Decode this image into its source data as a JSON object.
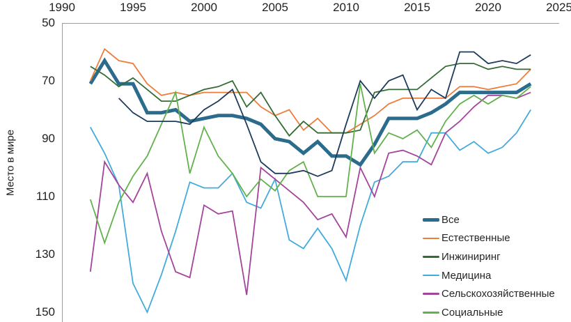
{
  "chart_data": {
    "type": "line",
    "title": "",
    "ylabel": "Место в мире",
    "x_axis": {
      "position": "top",
      "range": [
        1990,
        2025
      ],
      "ticks": [
        1990,
        1995,
        2000,
        2005,
        2010,
        2015,
        2020,
        2025
      ]
    },
    "y_axis": {
      "inverted": true,
      "label": "Место в мире",
      "range": [
        50,
        153
      ],
      "ticks": [
        50,
        70,
        90,
        110,
        130,
        150
      ]
    },
    "grid": false,
    "years": [
      1992,
      1993,
      1994,
      1995,
      1996,
      1997,
      1998,
      1999,
      2000,
      2001,
      2002,
      2003,
      2004,
      2005,
      2006,
      2007,
      2008,
      2009,
      2010,
      2011,
      2012,
      2013,
      2014,
      2015,
      2016,
      2017,
      2018,
      2019,
      2020,
      2021,
      2022,
      2023
    ],
    "series": [
      {
        "key": "vse",
        "name": "Все",
        "color": "#2b6c8c",
        "width": 5,
        "in_legend": true,
        "values": [
          71,
          63,
          71,
          71,
          81,
          81,
          80,
          84,
          83,
          82,
          82,
          83,
          85,
          90,
          91,
          95,
          91,
          96,
          96,
          99,
          92,
          83,
          83,
          83,
          81,
          78,
          74,
          74,
          74,
          74,
          74,
          71
        ]
      },
      {
        "key": "estestvennye",
        "name": "Естественные",
        "color": "#ed7d3b",
        "width": 1.8,
        "in_legend": true,
        "values": [
          70,
          59,
          63,
          64,
          71,
          75,
          74,
          75,
          74,
          74,
          74,
          74,
          79,
          82,
          80,
          87,
          83,
          88,
          88,
          85,
          82,
          78,
          76,
          76,
          76,
          76,
          72,
          72,
          73,
          72,
          71,
          66
        ]
      },
      {
        "key": "inzhiniring",
        "name": "Инжиниринг",
        "color": "#346b34",
        "width": 1.8,
        "in_legend": true,
        "values": [
          65,
          68,
          72,
          69,
          73,
          77,
          77,
          75,
          73,
          72,
          70,
          79,
          74,
          82,
          89,
          84,
          88,
          88,
          88,
          87,
          74,
          73,
          73,
          73,
          69,
          65,
          64,
          64,
          66,
          65,
          66,
          66
        ]
      },
      {
        "key": "meditsina",
        "name": "Медицина",
        "color": "#42abdc",
        "width": 1.8,
        "in_legend": true,
        "values": [
          86,
          95,
          106,
          140,
          150,
          137,
          122,
          105,
          107,
          107,
          102,
          112,
          114,
          104,
          125,
          128,
          121,
          128,
          139,
          120,
          105,
          103,
          98,
          98,
          88,
          88,
          94,
          91,
          95,
          93,
          88,
          80
        ]
      },
      {
        "key": "selskokhozyaystvennye",
        "name": "Сельскохозяйственные",
        "color": "#a3449c",
        "width": 1.8,
        "in_legend": true,
        "values": [
          136,
          98,
          106,
          112,
          102,
          122,
          136,
          138,
          113,
          116,
          115,
          144,
          100,
          104,
          108,
          112,
          118,
          116,
          124,
          100,
          110,
          95,
          94,
          96,
          99,
          88,
          84,
          79,
          75,
          75,
          76,
          74
        ]
      },
      {
        "key": "sotsialnye",
        "name": "Социальные",
        "color": "#62b14c",
        "width": 1.8,
        "in_legend": true,
        "values": [
          111,
          126,
          112,
          103,
          96,
          85,
          74,
          102,
          86,
          96,
          102,
          110,
          104,
          108,
          101,
          98,
          110,
          110,
          110,
          71,
          95,
          88,
          90,
          87,
          93,
          84,
          78,
          75,
          78,
          75,
          76,
          72
        ]
      },
      {
        "key": "unlabeled-navy",
        "name": "",
        "color": "#1e3a5c",
        "width": 1.8,
        "in_legend": false,
        "values": [
          null,
          null,
          76,
          81,
          84,
          84,
          84,
          85,
          80,
          77,
          73,
          85,
          98,
          102,
          102,
          101,
          103,
          101,
          85,
          70,
          76,
          70,
          68,
          80,
          73,
          76,
          60,
          60,
          64,
          63,
          64,
          61
        ]
      }
    ],
    "legend": {
      "position": "inside-right-bottom",
      "entries": [
        "Все",
        "Естественные",
        "Инжиниринг",
        "Медицина",
        "Сельскохозяйственные",
        "Социальные"
      ]
    }
  },
  "layout_note": "line chart of world rank (lower is better), inverted y axis, x axis on top"
}
